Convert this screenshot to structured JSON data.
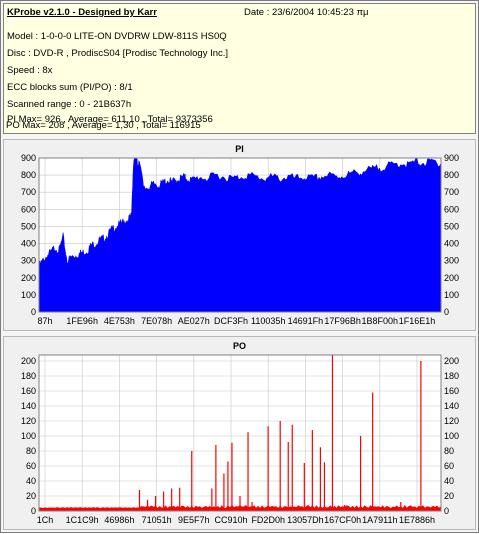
{
  "header": {
    "title": "KProbe v2.1.0 - Designed by Karr",
    "date": "Date : 23/6/2004 10:45:23 πμ",
    "lines": [
      "Model : 1-0-0-0 LITE-ON DVDRW LDW-811S   HS0Q",
      "Disc : DVD-R , ProdiscS04   [Prodisc Technology Inc.]",
      "Speed : 8x",
      "ECC blocks sum (PI/PO) : 8/1",
      "Scanned range : 0 - 21B637h",
      "PI Max= 926 , Average= 611,10 , Total= 9373356",
      "PO Max= 208 , Average= 1,30 , Total= 116915"
    ]
  },
  "chart_data": [
    {
      "type": "area",
      "title": "PI",
      "xlabel": "",
      "ylabel": "",
      "ylim": [
        0,
        900
      ],
      "yticks": [
        0,
        100,
        200,
        300,
        400,
        500,
        600,
        700,
        800,
        900
      ],
      "xticks": [
        "87h",
        "1FE96h",
        "4E753h",
        "7E078h",
        "AE027h",
        "DCF3Fh",
        "110035h",
        "14691Fh",
        "17F96Bh",
        "1B8F00h",
        "1F16E1h"
      ],
      "grid": true,
      "color": "#0000ff",
      "series": [
        {
          "name": "",
          "x": [
            0,
            0.01,
            0.02,
            0.03,
            0.04,
            0.05,
            0.06,
            0.07,
            0.08,
            0.09,
            0.1,
            0.11,
            0.12,
            0.13,
            0.14,
            0.15,
            0.16,
            0.17,
            0.18,
            0.19,
            0.2,
            0.21,
            0.22,
            0.23,
            0.235,
            0.24,
            0.245,
            0.25,
            0.26,
            0.27,
            0.28,
            0.29,
            0.3,
            0.31,
            0.32,
            0.33,
            0.34,
            0.35,
            0.36,
            0.37,
            0.38,
            0.4,
            0.42,
            0.44,
            0.46,
            0.48,
            0.5,
            0.52,
            0.54,
            0.56,
            0.58,
            0.6,
            0.62,
            0.64,
            0.66,
            0.68,
            0.7,
            0.72,
            0.74,
            0.76,
            0.78,
            0.8,
            0.82,
            0.84,
            0.86,
            0.88,
            0.9,
            0.92,
            0.94,
            0.96,
            0.98,
            1.0
          ],
          "y": [
            270,
            300,
            330,
            350,
            380,
            360,
            440,
            300,
            320,
            330,
            340,
            350,
            360,
            390,
            400,
            420,
            430,
            450,
            480,
            500,
            510,
            530,
            540,
            560,
            880,
            930,
            860,
            900,
            720,
            730,
            740,
            750,
            740,
            760,
            770,
            760,
            770,
            780,
            790,
            780,
            770,
            790,
            780,
            800,
            790,
            780,
            790,
            800,
            790,
            780,
            790,
            780,
            790,
            780,
            790,
            780,
            790,
            800,
            790,
            800,
            810,
            820,
            830,
            840,
            850,
            860,
            870,
            860,
            880,
            870,
            880,
            870
          ]
        }
      ]
    },
    {
      "type": "bar",
      "title": "PO",
      "xlabel": "",
      "ylabel": "",
      "ylim": [
        0,
        208
      ],
      "yticks": [
        0,
        20,
        40,
        60,
        80,
        100,
        120,
        140,
        160,
        180,
        200
      ],
      "xticks": [
        "1Ch",
        "1C1C9h",
        "46986h",
        "71051h",
        "9E5F7h",
        "CC910h",
        "FD2D0h",
        "13057Dh",
        "167CF0h",
        "1A7911h",
        "1E7886h"
      ],
      "grid": true,
      "color": "#ff0000",
      "baseline": 4,
      "series": [
        {
          "name": "",
          "x": [
            0.25,
            0.27,
            0.29,
            0.31,
            0.33,
            0.35,
            0.38,
            0.43,
            0.44,
            0.46,
            0.47,
            0.48,
            0.5,
            0.52,
            0.53,
            0.57,
            0.6,
            0.62,
            0.63,
            0.66,
            0.68,
            0.7,
            0.71,
            0.73,
            0.76,
            0.8,
            0.83,
            0.9,
            0.95
          ],
          "y": [
            28,
            15,
            20,
            26,
            30,
            31,
            80,
            30,
            88,
            50,
            66,
            91,
            20,
            105,
            12,
            113,
            120,
            92,
            115,
            64,
            108,
            85,
            65,
            208,
            8,
            100,
            158,
            12,
            200
          ]
        }
      ]
    }
  ]
}
